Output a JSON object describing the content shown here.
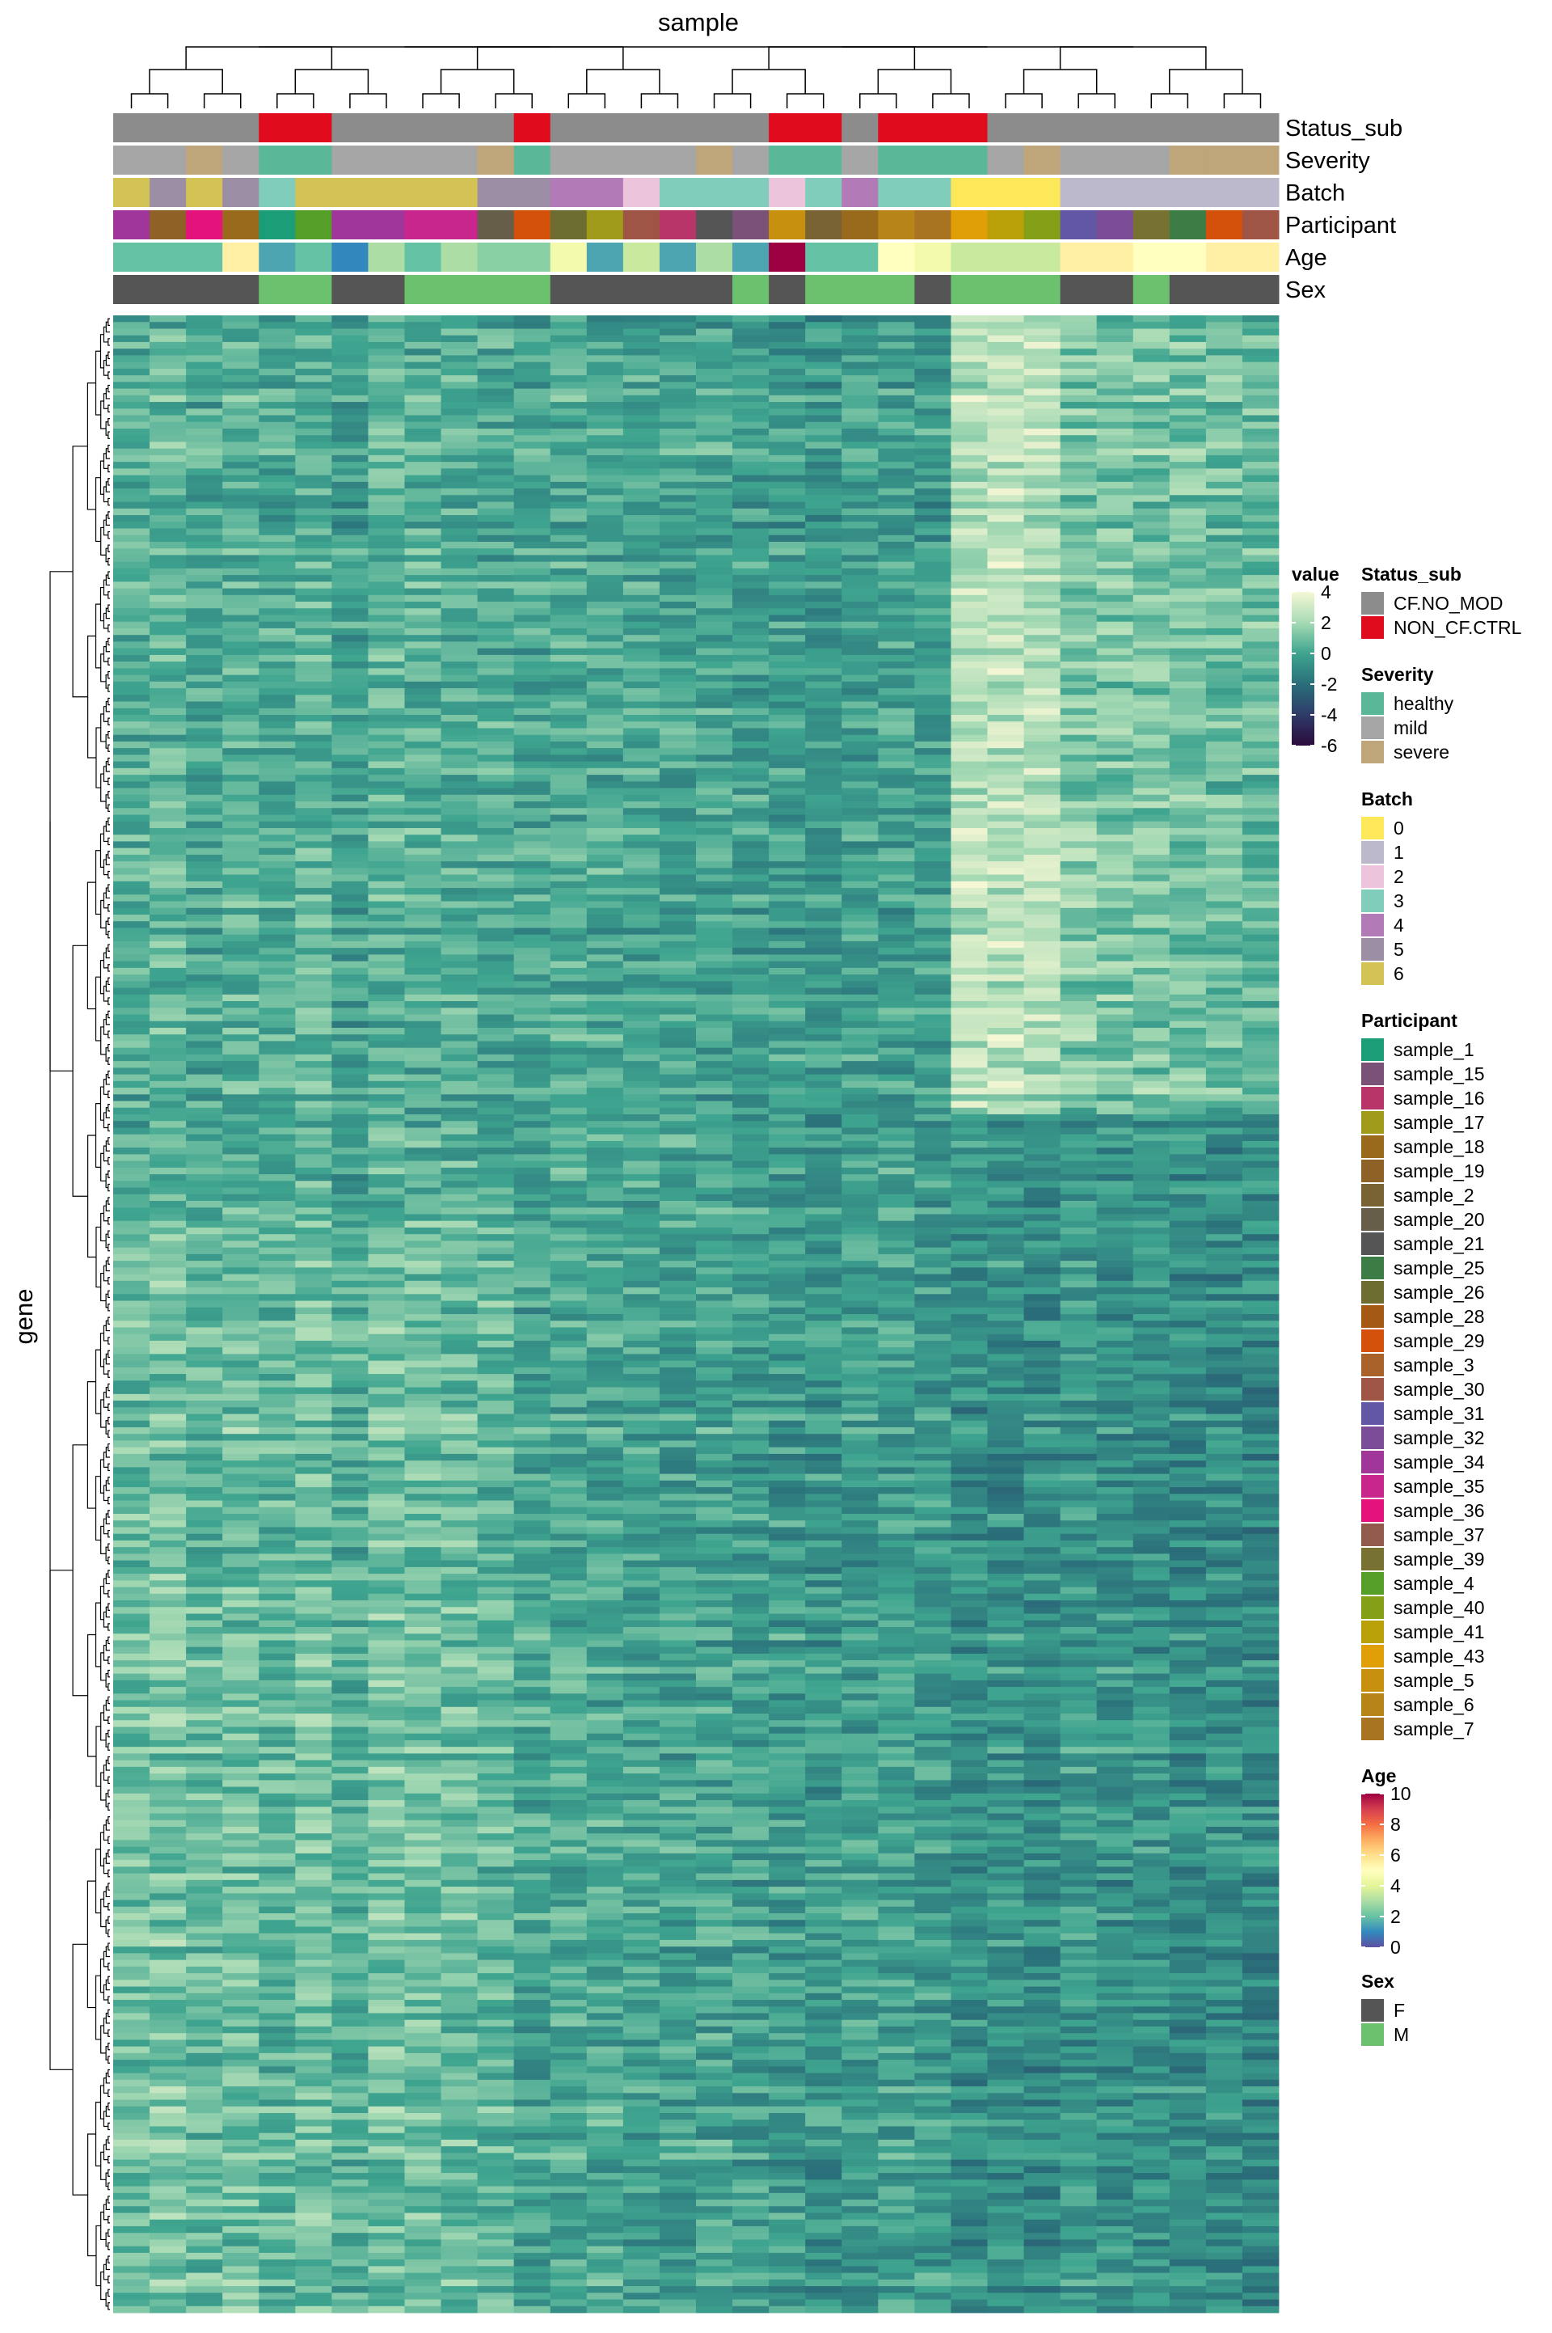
{
  "chart_data": {
    "type": "heatmap",
    "title": "",
    "xlabel": "sample",
    "ylabel": "gene",
    "n_columns": 32,
    "n_rows": 300,
    "column_dendrogram": true,
    "row_dendrogram": true,
    "value_legend": {
      "title": "value",
      "ticks": [
        4,
        2,
        0,
        -2,
        -4,
        -6
      ],
      "range": [
        -6,
        4
      ],
      "colors": [
        "#2b0a3d",
        "#2e3b68",
        "#2a6f7a",
        "#3ea48f",
        "#a6dab4",
        "#f6f7d5"
      ]
    },
    "annotation_tracks": [
      {
        "name": "Status_sub",
        "values": [
          "CF.NO_MOD",
          "CF.NO_MOD",
          "CF.NO_MOD",
          "CF.NO_MOD",
          "NON_CF.CTRL",
          "NON_CF.CTRL",
          "CF.NO_MOD",
          "CF.NO_MOD",
          "CF.NO_MOD",
          "CF.NO_MOD",
          "CF.NO_MOD",
          "NON_CF.CTRL",
          "CF.NO_MOD",
          "CF.NO_MOD",
          "CF.NO_MOD",
          "CF.NO_MOD",
          "CF.NO_MOD",
          "CF.NO_MOD",
          "NON_CF.CTRL",
          "NON_CF.CTRL",
          "CF.NO_MOD",
          "NON_CF.CTRL",
          "NON_CF.CTRL",
          "NON_CF.CTRL",
          "CF.NO_MOD",
          "CF.NO_MOD",
          "CF.NO_MOD",
          "CF.NO_MOD",
          "CF.NO_MOD",
          "CF.NO_MOD",
          "CF.NO_MOD",
          "CF.NO_MOD"
        ]
      },
      {
        "name": "Severity",
        "values": [
          "mild",
          "mild",
          "severe",
          "mild",
          "healthy",
          "healthy",
          "mild",
          "mild",
          "mild",
          "mild",
          "severe",
          "healthy",
          "mild",
          "mild",
          "mild",
          "mild",
          "severe",
          "mild",
          "healthy",
          "healthy",
          "mild",
          "healthy",
          "healthy",
          "healthy",
          "mild",
          "severe",
          "mild",
          "mild",
          "mild",
          "severe",
          "severe",
          "severe"
        ]
      },
      {
        "name": "Batch",
        "values": [
          "6",
          "5",
          "6",
          "5",
          "3",
          "6",
          "6",
          "6",
          "6",
          "6",
          "5",
          "5",
          "4",
          "4",
          "2",
          "3",
          "3",
          "3",
          "2",
          "3",
          "4",
          "3",
          "3",
          "0",
          "0",
          "0",
          "1",
          "1",
          "1",
          "1",
          "1",
          "1"
        ]
      },
      {
        "name": "Participant",
        "values": [
          "sample_34",
          "sample_19",
          "sample_36",
          "sample_18",
          "sample_1",
          "sample_4",
          "sample_34",
          "sample_34",
          "sample_35",
          "sample_35",
          "sample_20",
          "sample_29",
          "sample_26",
          "sample_17",
          "sample_30",
          "sample_16",
          "sample_21",
          "sample_15",
          "sample_5",
          "sample_2",
          "sample_18",
          "sample_6",
          "sample_7",
          "sample_43",
          "sample_41",
          "sample_40",
          "sample_31",
          "sample_32",
          "sample_39",
          "sample_25",
          "sample_29",
          "sample_30"
        ]
      },
      {
        "name": "Age",
        "values": [
          2,
          2,
          2,
          5.5,
          1.5,
          2,
          1,
          3,
          2,
          3,
          2.5,
          2.5,
          4.5,
          1.5,
          3.5,
          1.5,
          3,
          1.5,
          10,
          2,
          2,
          5,
          4.5,
          3.5,
          3.5,
          3.5,
          5.5,
          5.5,
          5,
          5,
          5.5,
          5.5
        ]
      },
      {
        "name": "Sex",
        "values": [
          "F",
          "F",
          "F",
          "F",
          "M",
          "M",
          "F",
          "F",
          "M",
          "M",
          "M",
          "M",
          "F",
          "F",
          "F",
          "F",
          "F",
          "M",
          "F",
          "M",
          "M",
          "M",
          "F",
          "M",
          "M",
          "M",
          "F",
          "F",
          "M",
          "F",
          "F",
          "F"
        ]
      }
    ],
    "legends": [
      {
        "title": "Status_sub",
        "entries": [
          {
            "label": "CF.NO_MOD",
            "color": "#8c8c8c"
          },
          {
            "label": "NON_CF.CTRL",
            "color": "#e00b1c"
          }
        ]
      },
      {
        "title": "Severity",
        "entries": [
          {
            "label": "healthy",
            "color": "#5ab797"
          },
          {
            "label": "mild",
            "color": "#a6a6a6"
          },
          {
            "label": "severe",
            "color": "#bfa57a"
          }
        ]
      },
      {
        "title": "Batch",
        "entries": [
          {
            "label": "0",
            "color": "#fde859"
          },
          {
            "label": "1",
            "color": "#bdb9cc"
          },
          {
            "label": "2",
            "color": "#ecc5dd"
          },
          {
            "label": "3",
            "color": "#80cdbc"
          },
          {
            "label": "4",
            "color": "#b27bb7"
          },
          {
            "label": "5",
            "color": "#9c8ea5"
          },
          {
            "label": "6",
            "color": "#d2c354"
          }
        ]
      },
      {
        "title": "Participant",
        "entries": [
          {
            "label": "sample_1",
            "color": "#1b9e77"
          },
          {
            "label": "sample_15",
            "color": "#7a5278"
          },
          {
            "label": "sample_16",
            "color": "#b8356a"
          },
          {
            "label": "sample_17",
            "color": "#a09a1a"
          },
          {
            "label": "sample_18",
            "color": "#9a6a1c"
          },
          {
            "label": "sample_19",
            "color": "#8e6127"
          },
          {
            "label": "sample_2",
            "color": "#7a6332"
          },
          {
            "label": "sample_20",
            "color": "#665e48"
          },
          {
            "label": "sample_21",
            "color": "#555555"
          },
          {
            "label": "sample_25",
            "color": "#3c7d46"
          },
          {
            "label": "sample_26",
            "color": "#6e6d31"
          },
          {
            "label": "sample_28",
            "color": "#a55a14"
          },
          {
            "label": "sample_29",
            "color": "#d4510c"
          },
          {
            "label": "sample_3",
            "color": "#a9622a"
          },
          {
            "label": "sample_30",
            "color": "#9f5545"
          },
          {
            "label": "sample_31",
            "color": "#6257a4"
          },
          {
            "label": "sample_32",
            "color": "#7b4c98"
          },
          {
            "label": "sample_34",
            "color": "#a0369a"
          },
          {
            "label": "sample_35",
            "color": "#c8268c"
          },
          {
            "label": "sample_36",
            "color": "#e3137b"
          },
          {
            "label": "sample_37",
            "color": "#925a4c"
          },
          {
            "label": "sample_39",
            "color": "#787232"
          },
          {
            "label": "sample_4",
            "color": "#559e27"
          },
          {
            "label": "sample_40",
            "color": "#83a016"
          },
          {
            "label": "sample_41",
            "color": "#b99f08"
          },
          {
            "label": "sample_43",
            "color": "#e09f06"
          },
          {
            "label": "sample_5",
            "color": "#c8900f"
          },
          {
            "label": "sample_6",
            "color": "#b78418"
          },
          {
            "label": "sample_7",
            "color": "#a97421"
          }
        ]
      },
      {
        "title": "Age",
        "continuous": true,
        "ticks": [
          10,
          8,
          6,
          4,
          2,
          0
        ],
        "range": [
          0,
          10
        ],
        "colors": [
          "#5e4fa2",
          "#3288bd",
          "#66c2a5",
          "#abdda4",
          "#e6f598",
          "#ffffbf",
          "#fee08b",
          "#fdae61",
          "#f46d43",
          "#d53e4f",
          "#9e0142"
        ]
      },
      {
        "title": "Sex",
        "entries": [
          {
            "label": "F",
            "color": "#555555"
          },
          {
            "label": "M",
            "color": "#6cc16e"
          }
        ]
      }
    ]
  }
}
